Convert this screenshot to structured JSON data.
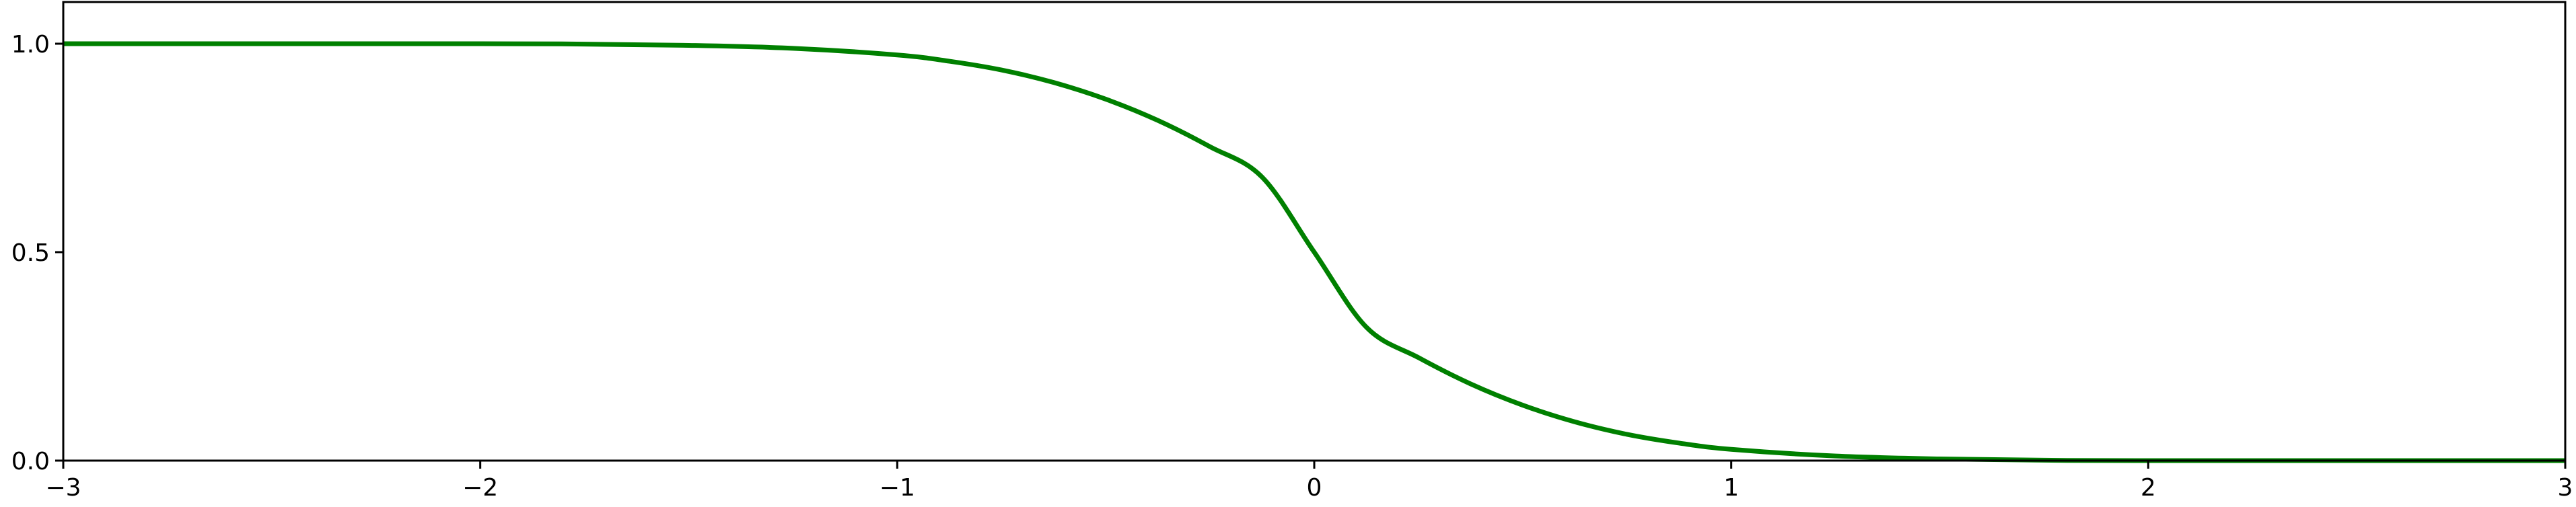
{
  "chart_data": {
    "type": "line",
    "title": "",
    "xlabel": "",
    "ylabel": "",
    "xlim": [
      -3,
      3
    ],
    "ylim": [
      0,
      1.1
    ],
    "grid": false,
    "x_ticks": [
      {
        "value": -3,
        "label": "−3"
      },
      {
        "value": -2,
        "label": "−2"
      },
      {
        "value": -1,
        "label": "−1"
      },
      {
        "value": 0,
        "label": "0"
      },
      {
        "value": 1,
        "label": "1"
      },
      {
        "value": 2,
        "label": "2"
      },
      {
        "value": 3,
        "label": "3"
      }
    ],
    "y_ticks": [
      {
        "value": 0.0,
        "label": "0.0"
      },
      {
        "value": 0.5,
        "label": "0.5"
      },
      {
        "value": 1.0,
        "label": "1.0"
      }
    ],
    "series": [
      {
        "color": "#008000",
        "x": [
          -3.0,
          -2.0,
          -1.75,
          -1.5,
          -1.25,
          -1.0,
          -0.875,
          -0.75,
          -0.625,
          -0.5,
          -0.375,
          -0.25,
          -0.125,
          0.0,
          0.125,
          0.25,
          0.375,
          0.5,
          0.625,
          0.75,
          0.875,
          1.0,
          1.25,
          1.5,
          1.75,
          2.0,
          3.0
        ],
        "y": [
          1.0,
          1.0,
          0.999,
          0.996,
          0.989,
          0.973,
          0.958,
          0.937,
          0.907,
          0.867,
          0.816,
          0.753,
          0.68,
          0.5,
          0.32,
          0.247,
          0.184,
          0.133,
          0.093,
          0.063,
          0.042,
          0.027,
          0.011,
          0.004,
          0.001,
          0.0,
          0.0
        ]
      }
    ]
  }
}
